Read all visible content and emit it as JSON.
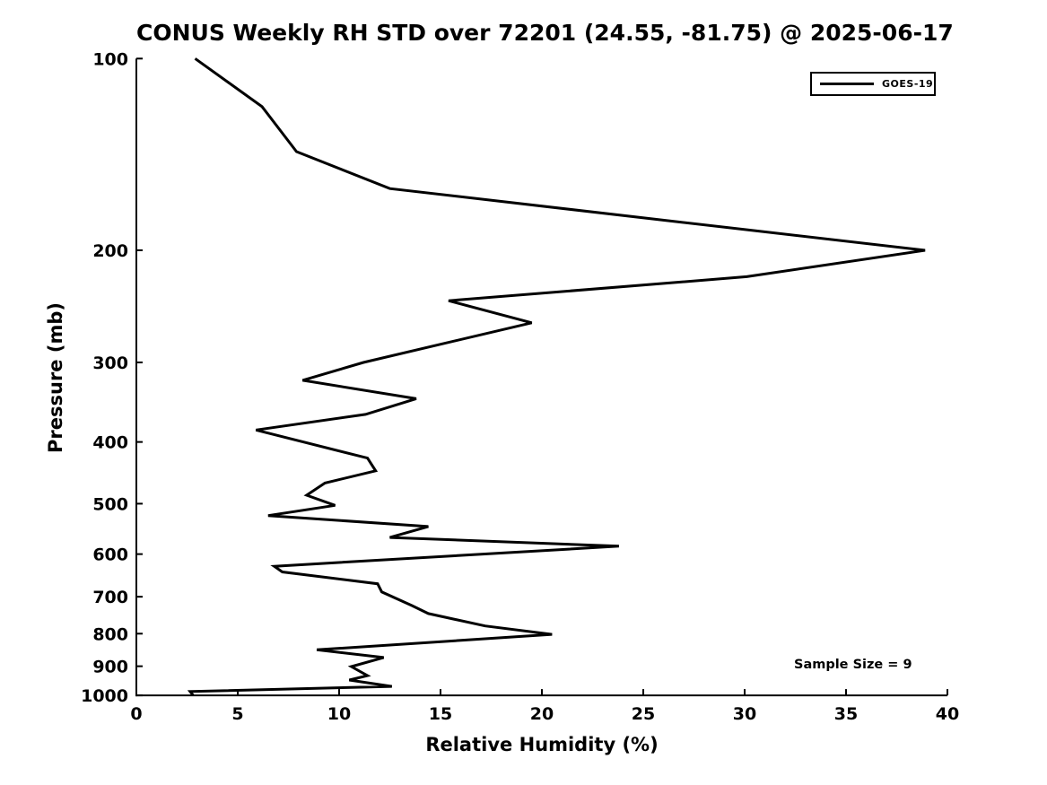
{
  "figure": {
    "background": "#ffffff",
    "line_color": "#000000",
    "text_color": "#000000"
  },
  "chart_data": {
    "type": "line",
    "title": "CONUS Weekly RH STD over 72201 (24.55, -81.75) @ 2025-06-17",
    "xlabel": "Relative Humidity (%)",
    "ylabel": "Pressure (mb)",
    "xlim": [
      0,
      40
    ],
    "ylim": [
      100,
      1000
    ],
    "y_scale": "log",
    "y_inverted": true,
    "grid": false,
    "x_ticks": [
      0,
      5,
      10,
      15,
      20,
      25,
      30,
      35,
      40
    ],
    "y_ticks": [
      100,
      200,
      300,
      400,
      500,
      600,
      700,
      800,
      900,
      1000
    ],
    "legend": {
      "position": "top-right",
      "entries": [
        {
          "label": "GOES-19",
          "color": "#000000"
        }
      ]
    },
    "annotations": [
      {
        "text": "Sample Size = 9",
        "position": "lower-right"
      }
    ],
    "series": [
      {
        "name": "GOES-19",
        "color": "#000000",
        "point_units": [
          "relative_humidity_pct",
          "pressure_mb"
        ],
        "points": [
          [
            2.9,
            100
          ],
          [
            6.2,
            119
          ],
          [
            7.9,
            140
          ],
          [
            12.5,
            160
          ],
          [
            38.9,
            200
          ],
          [
            30.1,
            220
          ],
          [
            15.4,
            240
          ],
          [
            19.5,
            260
          ],
          [
            11.2,
            300
          ],
          [
            8.2,
            320
          ],
          [
            13.8,
            342
          ],
          [
            11.3,
            362
          ],
          [
            5.9,
            383
          ],
          [
            11.4,
            424
          ],
          [
            11.8,
            444
          ],
          [
            9.3,
            464
          ],
          [
            8.4,
            485
          ],
          [
            9.8,
            503
          ],
          [
            6.5,
            522
          ],
          [
            14.4,
            543
          ],
          [
            12.5,
            565
          ],
          [
            23.8,
            583
          ],
          [
            6.8,
            627
          ],
          [
            7.2,
            640
          ],
          [
            11.9,
            668
          ],
          [
            12.1,
            688
          ],
          [
            13.6,
            723
          ],
          [
            14.4,
            744
          ],
          [
            17.2,
            778
          ],
          [
            20.5,
            802
          ],
          [
            8.9,
            848
          ],
          [
            12.2,
            872
          ],
          [
            10.6,
            901
          ],
          [
            11.4,
            931
          ],
          [
            10.5,
            946
          ],
          [
            12.6,
            968
          ],
          [
            2.65,
            986
          ],
          [
            2.8,
            1000
          ]
        ]
      }
    ]
  }
}
